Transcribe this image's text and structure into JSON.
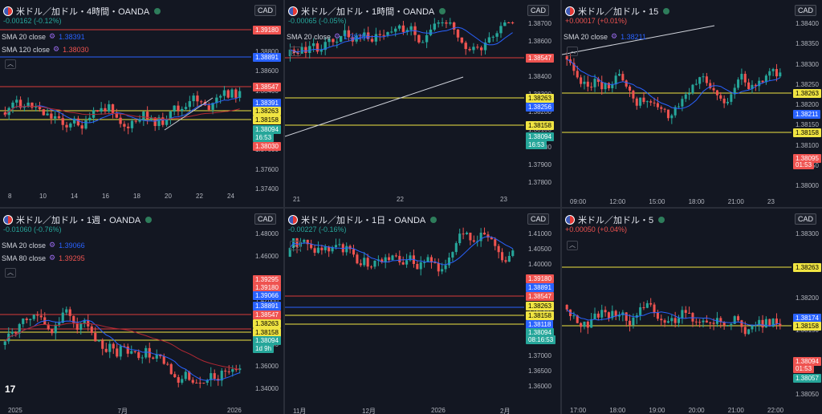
{
  "colors": {
    "up": "#26a69a",
    "down": "#ef5350",
    "sma20": "#2962ff",
    "sma_long": "#b22833",
    "hline_yellow": "#f0e442",
    "hline_red": "#d83b3b",
    "hline_blue": "#2962ff",
    "trend": "#d1d4dc"
  },
  "panes": [
    {
      "id": "p1",
      "title": "米ドル／加ドル・4時間・OANDA",
      "change": "-0.00162 (-0.12%)",
      "change_color": "#26a69a",
      "currency": "CAD",
      "indicators": [
        {
          "label": "SMA 20 close",
          "value": "1.38391",
          "color": "#2962ff"
        },
        {
          "label": "SMA 120 close",
          "value": "1.38030",
          "color": "#ef5350"
        }
      ],
      "y_ticks": [
        "1.39000",
        "1.38800",
        "1.38600",
        "1.38400",
        "1.38200",
        "1.38000",
        "1.37800",
        "1.37600",
        "1.37400"
      ],
      "price_tags": [
        {
          "text": "1.39180",
          "bg": "#ef5350",
          "fg": "#ffffff"
        },
        {
          "text": "1.38891",
          "bg": "#2962ff",
          "fg": "#ffffff"
        },
        {
          "text": "1.38547",
          "bg": "#ef5350",
          "fg": "#ffffff"
        },
        {
          "text": "1.38391",
          "bg": "#2962ff",
          "fg": "#ffffff"
        },
        {
          "text": "1.38263",
          "bg": "#f0e442",
          "fg": "#000000"
        },
        {
          "text": "1.38158",
          "bg": "#f0e442",
          "fg": "#000000"
        },
        {
          "text": "1.38094",
          "bg": "#26a69a",
          "fg": "#ffffff"
        },
        {
          "text": "16:53",
          "bg": "#26a69a",
          "fg": "#ffffff"
        },
        {
          "text": "1.38030",
          "bg": "#ef5350",
          "fg": "#ffffff"
        }
      ],
      "x_ticks": [
        "8",
        "10",
        "14",
        "16",
        "18",
        "20",
        "22",
        "24"
      ]
    },
    {
      "id": "p2",
      "title": "米ドル／加ドル・1時間・OANDA",
      "change": "-0.00065 (-0.05%)",
      "change_color": "#26a69a",
      "currency": "CAD",
      "indicators": [
        {
          "label": "SMA 20 close",
          "value": "1.38256",
          "color": "#2962ff"
        }
      ],
      "y_ticks": [
        "1.38700",
        "1.38600",
        "1.38500",
        "1.38400",
        "1.38300",
        "1.38200",
        "1.38100",
        "1.38000",
        "1.37900",
        "1.37800"
      ],
      "price_tags": [
        {
          "text": "1.38547",
          "bg": "#ef5350",
          "fg": "#ffffff"
        },
        {
          "text": "1.38263",
          "bg": "#f0e442",
          "fg": "#000000"
        },
        {
          "text": "1.38256",
          "bg": "#2962ff",
          "fg": "#ffffff"
        },
        {
          "text": "1.38158",
          "bg": "#f0e442",
          "fg": "#000000"
        },
        {
          "text": "1.38094",
          "bg": "#26a69a",
          "fg": "#ffffff"
        },
        {
          "text": "16:53",
          "bg": "#26a69a",
          "fg": "#ffffff"
        }
      ],
      "x_ticks": [
        "21",
        "22",
        "23"
      ]
    },
    {
      "id": "p3",
      "title": "米ドル／加ドル・15",
      "change": "+0.00017 (+0.01%)",
      "change_color": "#ef5350",
      "currency": "CAD",
      "indicators": [
        {
          "label": "SMA 20 close",
          "value": "1.38211",
          "color": "#2962ff"
        }
      ],
      "y_ticks": [
        "1.38400",
        "1.38350",
        "1.38300",
        "1.38250",
        "1.38200",
        "1.38150",
        "1.38100",
        "1.38050",
        "1.38000"
      ],
      "price_tags": [
        {
          "text": "1.38263",
          "bg": "#f0e442",
          "fg": "#000000"
        },
        {
          "text": "1.38211",
          "bg": "#2962ff",
          "fg": "#ffffff"
        },
        {
          "text": "1.38158",
          "bg": "#f0e442",
          "fg": "#000000"
        },
        {
          "text": "1.38095",
          "bg": "#ef5350",
          "fg": "#ffffff"
        },
        {
          "text": "01:53",
          "bg": "#ef5350",
          "fg": "#ffffff"
        }
      ],
      "x_ticks": [
        "09:00",
        "12:00",
        "15:00",
        "18:00",
        "21:00",
        "23"
      ]
    },
    {
      "id": "p4",
      "title": "米ドル／加ドル・1週・OANDA",
      "change": "-0.01060 (-0.76%)",
      "change_color": "#26a69a",
      "currency": "CAD",
      "indicators": [
        {
          "label": "SMA 20 close",
          "value": "1.39066",
          "color": "#2962ff"
        },
        {
          "label": "SMA 80 close",
          "value": "1.39295",
          "color": "#ef5350"
        }
      ],
      "y_ticks": [
        "1.48000",
        "1.46000",
        "1.44000",
        "1.42000",
        "1.40000",
        "1.38000",
        "1.36000",
        "1.34000"
      ],
      "price_tags": [
        {
          "text": "1.39295",
          "bg": "#ef5350",
          "fg": "#ffffff"
        },
        {
          "text": "1.39180",
          "bg": "#ef5350",
          "fg": "#ffffff"
        },
        {
          "text": "1.39066",
          "bg": "#2962ff",
          "fg": "#ffffff"
        },
        {
          "text": "1.38891",
          "bg": "#2962ff",
          "fg": "#ffffff"
        },
        {
          "text": "1.38547",
          "bg": "#ef5350",
          "fg": "#ffffff"
        },
        {
          "text": "1.38263",
          "bg": "#f0e442",
          "fg": "#000000"
        },
        {
          "text": "1.38158",
          "bg": "#f0e442",
          "fg": "#000000"
        },
        {
          "text": "1.38094",
          "bg": "#26a69a",
          "fg": "#ffffff"
        },
        {
          "text": "1d 9h",
          "bg": "#26a69a",
          "fg": "#ffffff"
        }
      ],
      "x_ticks": [
        "2025",
        "7月",
        "2026"
      ]
    },
    {
      "id": "p5",
      "title": "米ドル／加ドル・1日・OANDA",
      "change": "-0.00227 (-0.16%)",
      "change_color": "#26a69a",
      "currency": "CAD",
      "indicators": [],
      "y_ticks": [
        "1.41000",
        "1.40500",
        "1.40000",
        "1.39500",
        "1.39000",
        "1.38500",
        "1.38000",
        "1.37500",
        "1.37000",
        "1.36500",
        "1.36000"
      ],
      "price_tags": [
        {
          "text": "1.39180",
          "bg": "#ef5350",
          "fg": "#ffffff"
        },
        {
          "text": "1.38891",
          "bg": "#2962ff",
          "fg": "#ffffff"
        },
        {
          "text": "1.38547",
          "bg": "#ef5350",
          "fg": "#ffffff"
        },
        {
          "text": "1.38263",
          "bg": "#f0e442",
          "fg": "#000000"
        },
        {
          "text": "1.38158",
          "bg": "#f0e442",
          "fg": "#000000"
        },
        {
          "text": "1.38118",
          "bg": "#2962ff",
          "fg": "#ffffff"
        },
        {
          "text": "1.38094",
          "bg": "#26a69a",
          "fg": "#ffffff"
        },
        {
          "text": "08:16:53",
          "bg": "#26a69a",
          "fg": "#ffffff"
        }
      ],
      "x_ticks": [
        "11月",
        "12月",
        "2026",
        "2月"
      ]
    },
    {
      "id": "p6",
      "title": "米ドル／加ドル・5",
      "change": "+0.00050 (+0.04%)",
      "change_color": "#ef5350",
      "currency": "CAD",
      "indicators": [],
      "y_ticks": [
        "1.38300",
        "1.38250",
        "1.38200",
        "1.38150",
        "1.38100",
        "1.38050"
      ],
      "price_tags": [
        {
          "text": "1.38263",
          "bg": "#f0e442",
          "fg": "#000000"
        },
        {
          "text": "1.38174",
          "bg": "#2962ff",
          "fg": "#ffffff"
        },
        {
          "text": "1.38158",
          "bg": "#f0e442",
          "fg": "#000000"
        },
        {
          "text": "1.38094",
          "bg": "#ef5350",
          "fg": "#ffffff"
        },
        {
          "text": "01:53",
          "bg": "#ef5350",
          "fg": "#ffffff"
        },
        {
          "text": "1.38057",
          "bg": "#26a69a",
          "fg": "#ffffff"
        }
      ],
      "x_ticks": [
        "17:00",
        "18:00",
        "19:00",
        "20:00",
        "21:00",
        "22:00"
      ]
    }
  ],
  "logo_text": "17"
}
